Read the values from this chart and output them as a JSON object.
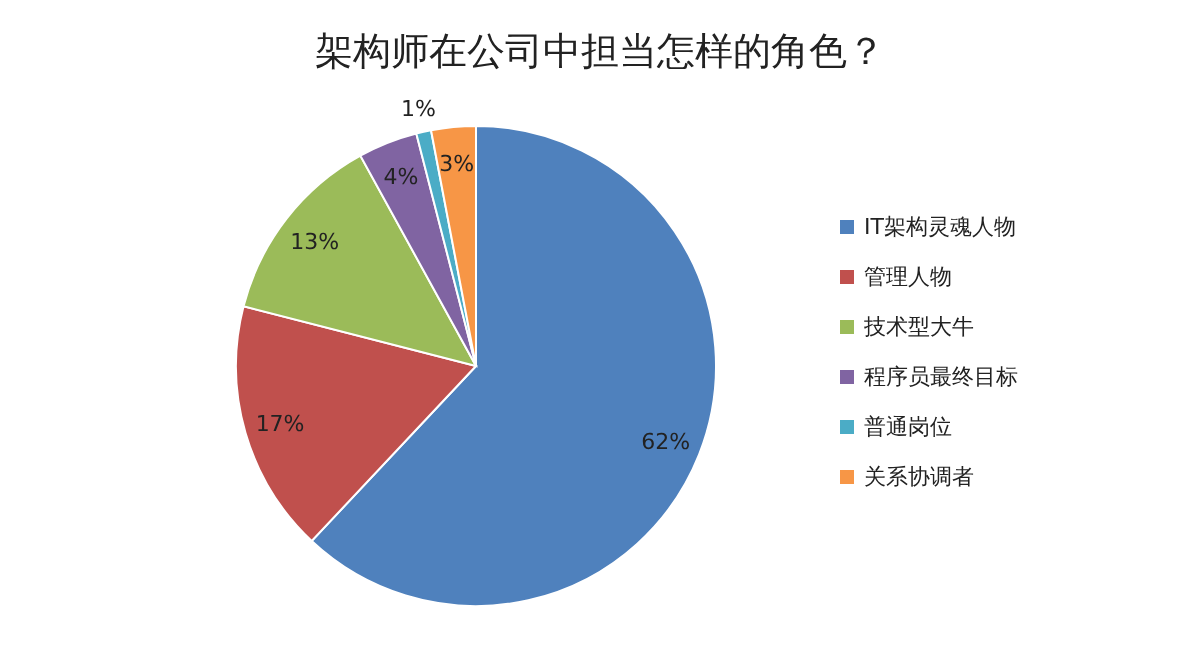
{
  "chart_data": {
    "type": "pie",
    "title": "架构师在公司中担当怎样的角色？",
    "categories": [
      "IT架构灵魂人物",
      "管理人物",
      "技术型大牛",
      "程序员最终目标",
      "普通岗位",
      "关系协调者"
    ],
    "values": [
      62,
      17,
      13,
      4,
      1,
      3
    ],
    "colors": [
      "#4f81bd",
      "#c0504d",
      "#9bbb59",
      "#8064a2",
      "#4bacc6",
      "#f79646"
    ],
    "value_labels": [
      "62%",
      "17%",
      "13%",
      "4%",
      "1%",
      "3%"
    ],
    "legend": "right"
  }
}
